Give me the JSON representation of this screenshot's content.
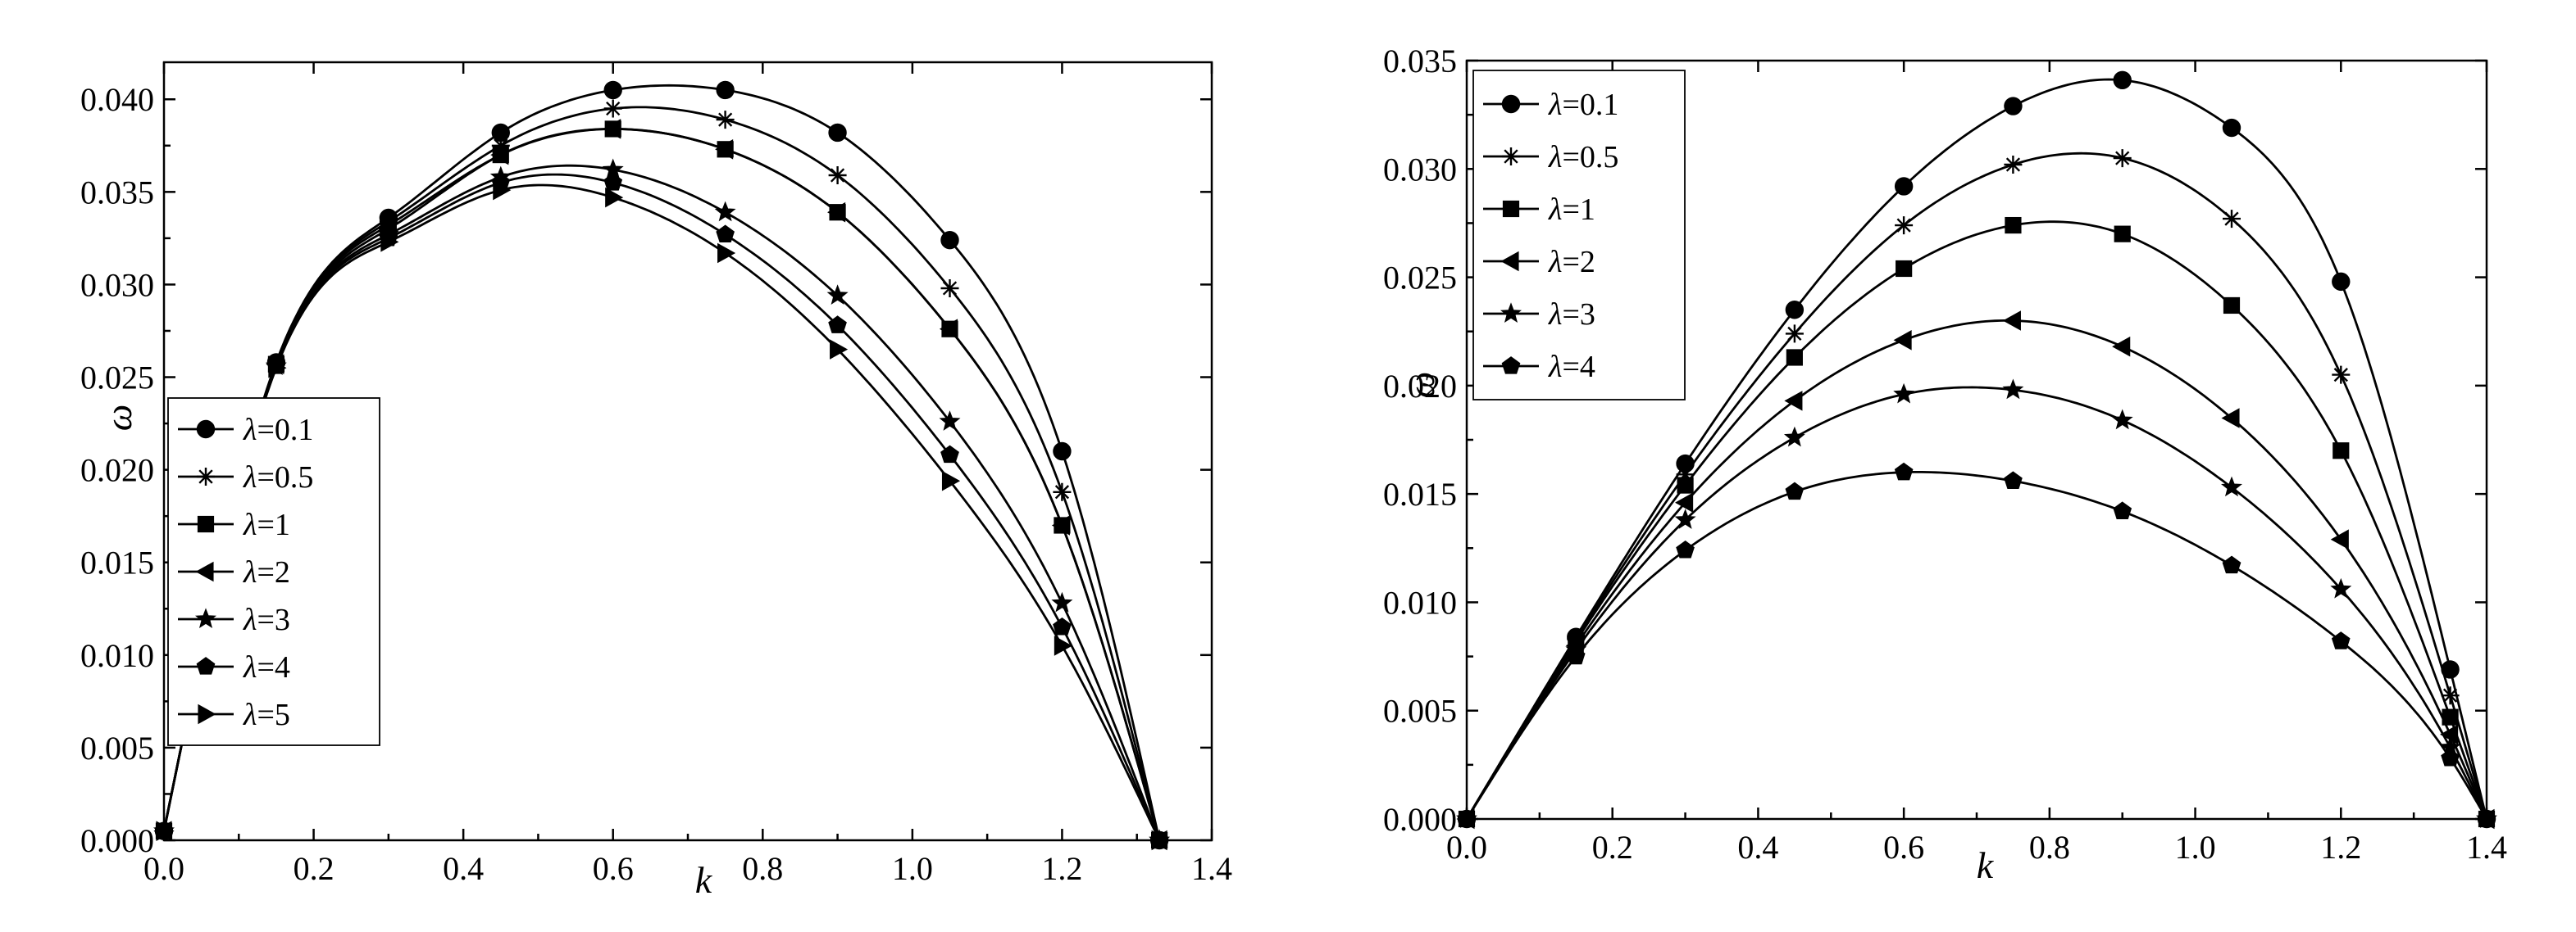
{
  "chart_data": [
    {
      "type": "line",
      "xlabel": "k",
      "ylabel": "ω",
      "xlim": [
        0.0,
        1.4
      ],
      "ylim": [
        0.0,
        0.042
      ],
      "xticks": [
        "0.0",
        "0.2",
        "0.4",
        "0.6",
        "0.8",
        "1.0",
        "1.2",
        "1.4"
      ],
      "yticks": [
        "0.000",
        "0.005",
        "0.010",
        "0.015",
        "0.020",
        "0.025",
        "0.030",
        "0.035",
        "0.040"
      ],
      "legend_position": "bottom-left",
      "series": [
        {
          "name": "λ=0.1",
          "greek": "λ",
          "rest": "=0.1",
          "marker": "circle",
          "x": [
            0.0,
            0.15,
            0.3,
            0.45,
            0.6,
            0.75,
            0.9,
            1.05,
            1.2,
            1.33
          ],
          "y": [
            0.0005,
            0.0258,
            0.0336,
            0.0382,
            0.0405,
            0.0405,
            0.0382,
            0.0324,
            0.021,
            0.0
          ]
        },
        {
          "name": "λ=0.5",
          "greek": "λ",
          "rest": "=0.5",
          "marker": "asterisk",
          "x": [
            0.0,
            0.15,
            0.3,
            0.45,
            0.6,
            0.75,
            0.9,
            1.05,
            1.2,
            1.33
          ],
          "y": [
            0.0005,
            0.0257,
            0.0334,
            0.0375,
            0.0395,
            0.0389,
            0.0359,
            0.0298,
            0.0188,
            0.0
          ]
        },
        {
          "name": "λ=1",
          "greek": "λ",
          "rest": "=1",
          "marker": "square",
          "x": [
            0.0,
            0.15,
            0.3,
            0.45,
            0.6,
            0.75,
            0.9,
            1.05,
            1.2,
            1.33
          ],
          "y": [
            0.0005,
            0.0257,
            0.0332,
            0.037,
            0.0384,
            0.0373,
            0.0339,
            0.0276,
            0.017,
            0.0
          ]
        },
        {
          "name": "λ=2",
          "greek": "λ",
          "rest": "=2",
          "marker": "triangle-left",
          "x": [
            0.0,
            0.15,
            0.3,
            0.45,
            0.6,
            0.75,
            0.9,
            1.05,
            1.2,
            1.33
          ],
          "y": [
            0.0005,
            0.0257,
            0.033,
            0.037,
            0.0384,
            0.0373,
            0.0339,
            0.0276,
            0.017,
            0.0
          ]
        },
        {
          "name": "λ=3",
          "greek": "λ",
          "rest": "=3",
          "marker": "star",
          "x": [
            0.0,
            0.15,
            0.3,
            0.45,
            0.6,
            0.75,
            0.9,
            1.05,
            1.2,
            1.33
          ],
          "y": [
            0.0005,
            0.0256,
            0.0327,
            0.0358,
            0.0362,
            0.0339,
            0.0294,
            0.0226,
            0.0128,
            0.0
          ]
        },
        {
          "name": "λ=4",
          "greek": "λ",
          "rest": "=4",
          "marker": "pentagon",
          "x": [
            0.0,
            0.15,
            0.3,
            0.45,
            0.6,
            0.75,
            0.9,
            1.05,
            1.2,
            1.33
          ],
          "y": [
            0.0005,
            0.0256,
            0.0325,
            0.0355,
            0.0355,
            0.0327,
            0.0278,
            0.0208,
            0.0115,
            0.0
          ]
        },
        {
          "name": "λ=5",
          "greek": "λ",
          "rest": "=5",
          "marker": "triangle-right",
          "x": [
            0.0,
            0.15,
            0.3,
            0.45,
            0.6,
            0.75,
            0.9,
            1.05,
            1.2,
            1.33
          ],
          "y": [
            0.0005,
            0.0255,
            0.0323,
            0.0351,
            0.0347,
            0.0317,
            0.0265,
            0.0194,
            0.0105,
            0.0
          ]
        }
      ]
    },
    {
      "type": "line",
      "xlabel": "k",
      "ylabel": "ω",
      "xlim": [
        0.0,
        1.4
      ],
      "ylim": [
        0.0,
        0.035
      ],
      "xticks": [
        "0.0",
        "0.2",
        "0.4",
        "0.6",
        "0.8",
        "1.0",
        "1.2",
        "1.4"
      ],
      "yticks": [
        "0.000",
        "0.005",
        "0.010",
        "0.015",
        "0.020",
        "0.025",
        "0.030",
        "0.035"
      ],
      "legend_position": "top-left",
      "series": [
        {
          "name": "λ=0.1",
          "greek": "λ",
          "rest": "=0.1",
          "marker": "circle",
          "x": [
            0.0,
            0.15,
            0.3,
            0.45,
            0.6,
            0.75,
            0.9,
            1.05,
            1.2,
            1.35,
            1.4
          ],
          "y": [
            0.0,
            0.0084,
            0.0164,
            0.0235,
            0.0292,
            0.0329,
            0.0341,
            0.0319,
            0.0248,
            0.0069,
            0.0
          ]
        },
        {
          "name": "λ=0.5",
          "greek": "λ",
          "rest": "=0.5",
          "marker": "asterisk",
          "x": [
            0.0,
            0.15,
            0.3,
            0.45,
            0.6,
            0.75,
            0.9,
            1.05,
            1.2,
            1.35,
            1.4
          ],
          "y": [
            0.0,
            0.0083,
            0.0159,
            0.0224,
            0.0274,
            0.0302,
            0.0305,
            0.0277,
            0.0205,
            0.0057,
            0.0
          ]
        },
        {
          "name": "λ=1",
          "greek": "λ",
          "rest": "=1",
          "marker": "square",
          "x": [
            0.0,
            0.15,
            0.3,
            0.45,
            0.6,
            0.75,
            0.9,
            1.05,
            1.2,
            1.35,
            1.4
          ],
          "y": [
            0.0,
            0.0082,
            0.0154,
            0.0213,
            0.0254,
            0.0274,
            0.027,
            0.0237,
            0.017,
            0.0047,
            0.0
          ]
        },
        {
          "name": "λ=2",
          "greek": "λ",
          "rest": "=2",
          "marker": "triangle-left",
          "x": [
            0.0,
            0.15,
            0.3,
            0.45,
            0.6,
            0.75,
            0.9,
            1.05,
            1.2,
            1.35,
            1.4
          ],
          "y": [
            0.0,
            0.008,
            0.0146,
            0.0193,
            0.0221,
            0.023,
            0.0218,
            0.0185,
            0.0129,
            0.0039,
            0.0
          ]
        },
        {
          "name": "λ=3",
          "greek": "λ",
          "rest": "=3",
          "marker": "star",
          "x": [
            0.0,
            0.15,
            0.3,
            0.45,
            0.6,
            0.75,
            0.9,
            1.05,
            1.2,
            1.35,
            1.4
          ],
          "y": [
            0.0,
            0.0078,
            0.0138,
            0.0176,
            0.0196,
            0.0198,
            0.0184,
            0.0153,
            0.0106,
            0.0033,
            0.0
          ]
        },
        {
          "name": "λ=4",
          "greek": "λ",
          "rest": "=4",
          "marker": "pentagon",
          "x": [
            0.0,
            0.15,
            0.3,
            0.45,
            0.6,
            0.75,
            0.9,
            1.05,
            1.2,
            1.35,
            1.4
          ],
          "y": [
            0.0,
            0.0075,
            0.0124,
            0.0151,
            0.016,
            0.0156,
            0.0142,
            0.0117,
            0.0082,
            0.0028,
            0.0
          ]
        }
      ]
    }
  ]
}
